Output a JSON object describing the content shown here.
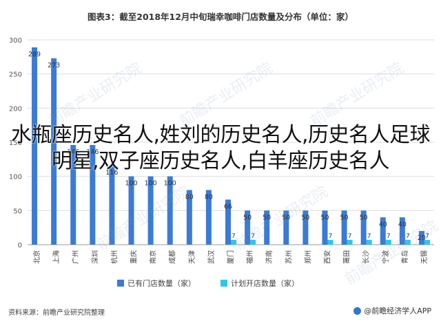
{
  "chart_data": {
    "type": "bar",
    "title": "图表3：截至2018年12月中旬瑞幸咖啡门店数量及分布（单位：家）",
    "categories": [
      "北京",
      "上海",
      "广州",
      "深圳",
      "杭州",
      "重庆",
      "南京",
      "成都",
      "天津",
      "武汉",
      "厦门",
      "福州",
      "济南",
      "苏州",
      "郑州",
      "西安",
      "莆田",
      "长沙",
      "宁波",
      "青岛",
      "无锡"
    ],
    "series": [
      {
        "name": "已有门店数量（家）",
        "color": "#3a7bd5",
        "values": [
          289,
          273,
          146,
          146,
          116,
          100,
          100,
          100,
          80,
          80,
          66,
          50,
          50,
          50,
          50,
          50,
          50,
          50,
          40,
          40,
          20
        ]
      },
      {
        "name": "计划开店数量（家）",
        "color": "#2cc7ea",
        "values": [
          0,
          0,
          0,
          0,
          0,
          0,
          0,
          0,
          0,
          0,
          7,
          7,
          0,
          0,
          0,
          7,
          7,
          7,
          7,
          7,
          7
        ]
      }
    ],
    "labels": [
      "289",
      "273",
      "146",
      "146",
      "116",
      "100",
      "100",
      "100",
      "80",
      "80",
      "66",
      "50",
      "50",
      "50",
      "50",
      "50",
      "50",
      "50",
      "40",
      "40",
      "20"
    ],
    "plan_labels": [
      "",
      "",
      "",
      "",
      "",
      "",
      "",
      "",
      "",
      "",
      "7",
      "7",
      "",
      "",
      "",
      "7",
      "7",
      "7",
      "7",
      "7",
      "7"
    ],
    "ylim": [
      0,
      300
    ],
    "yticks": [
      0,
      50,
      100,
      150,
      200,
      250,
      300
    ],
    "grid": true,
    "legend_position": "bottom"
  },
  "overlay": {
    "text": "水瓶座历史名人,姓刘的历史名人,历史名人足球明星,双子座历史名人,白羊座历史名人"
  },
  "footer": {
    "source": "资料来源：前瞻产业研究院整理",
    "brand": "@前瞻经济学人APP"
  },
  "watermark": "前瞻产业研究院"
}
